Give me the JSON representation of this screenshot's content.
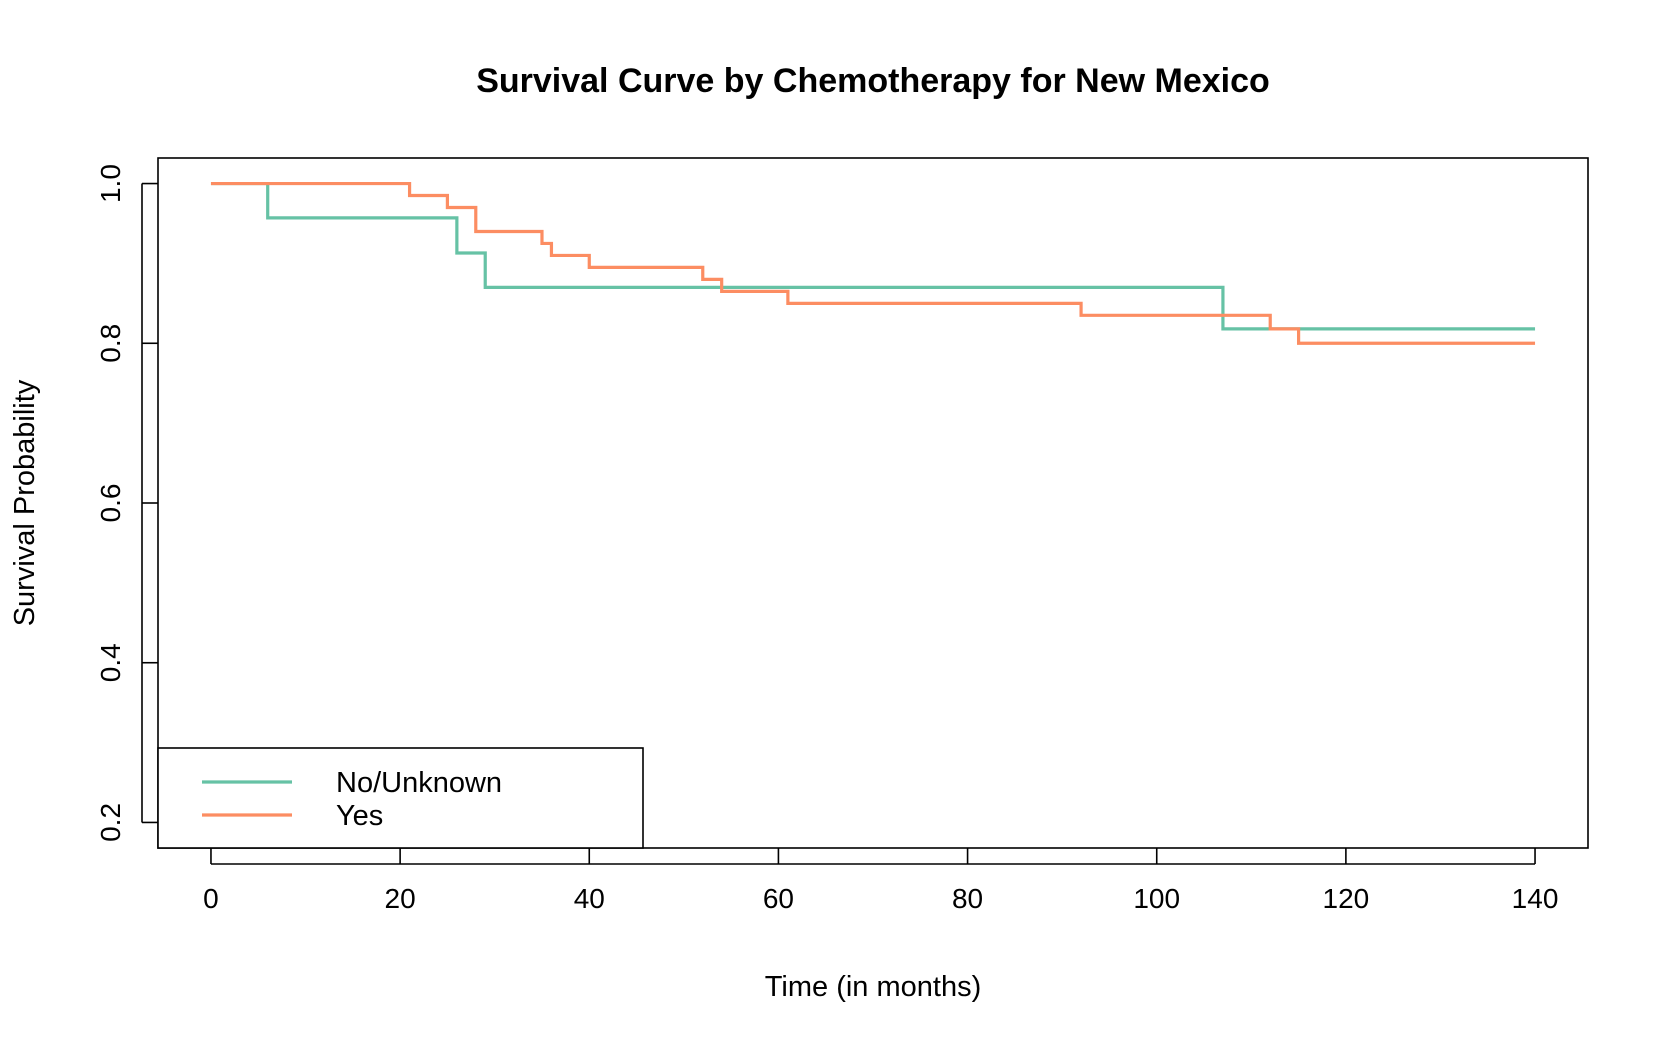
{
  "chart_data": {
    "type": "line",
    "step": true,
    "title": "Survival Curve by Chemotherapy for New Mexico",
    "xlabel": "Time (in months)",
    "ylabel": "Survival Probability",
    "xlim": [
      -5.6,
      145.6
    ],
    "ylim": [
      0.168,
      1.032
    ],
    "x_ticks": [
      0,
      20,
      40,
      60,
      80,
      100,
      120,
      140
    ],
    "y_ticks": [
      0.2,
      0.4,
      0.6,
      0.8,
      1.0
    ],
    "x_tick_labels": [
      "0",
      "20",
      "40",
      "60",
      "80",
      "100",
      "120",
      "140"
    ],
    "y_tick_labels": [
      "0.2",
      "0.4",
      "0.6",
      "0.8",
      "1.0"
    ],
    "grid": false,
    "legend_position": "bottom-left",
    "series": [
      {
        "name": "No/Unknown",
        "color": "#66c2a5",
        "x": [
          0,
          6,
          26,
          29,
          107,
          140
        ],
        "y": [
          1.0,
          0.957,
          0.913,
          0.87,
          0.818,
          0.818
        ]
      },
      {
        "name": "Yes",
        "color": "#fc8d62",
        "x": [
          0,
          21,
          25,
          28,
          35,
          36,
          40,
          52,
          54,
          61,
          92,
          112,
          115,
          140
        ],
        "y": [
          1.0,
          0.985,
          0.97,
          0.94,
          0.925,
          0.91,
          0.895,
          0.88,
          0.865,
          0.85,
          0.835,
          0.818,
          0.8,
          0.8
        ]
      }
    ]
  }
}
